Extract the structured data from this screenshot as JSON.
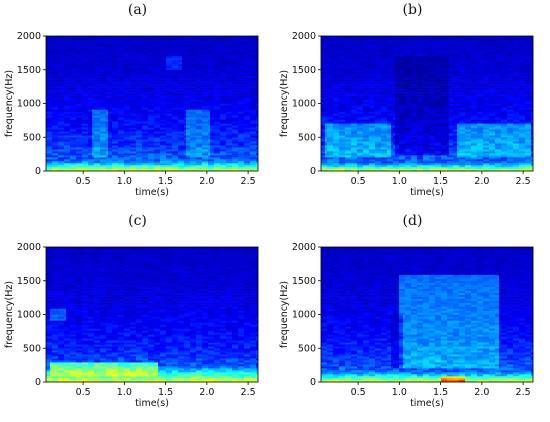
{
  "chart_data": [
    {
      "type": "heatmap",
      "panel_label": "(a)",
      "xlabel": "time(s)",
      "ylabel": "frequency(Hz)",
      "xlim": [
        0.05,
        2.62
      ],
      "ylim": [
        0,
        2000
      ],
      "xticks": [
        0.5,
        1.0,
        1.5,
        2.0,
        2.5
      ],
      "xtick_labels": [
        "0.5",
        "1.0",
        "1.5",
        "2.0",
        "2.5"
      ],
      "yticks": [
        0,
        500,
        1000,
        1500,
        2000
      ],
      "ytick_labels": [
        "0",
        "500",
        "1000",
        "1500",
        "2000"
      ],
      "colormap": "jet",
      "low_freq_energy_band_hz": 150,
      "notable_regions": [
        {
          "x": [
            0.6,
            0.8
          ],
          "y": [
            200,
            900
          ],
          "level": 0.32
        },
        {
          "x": [
            1.75,
            2.05
          ],
          "y": [
            200,
            900
          ],
          "level": 0.3
        },
        {
          "x": [
            1.5,
            1.7
          ],
          "y": [
            1500,
            1700
          ],
          "level": 0.25
        }
      ]
    },
    {
      "type": "heatmap",
      "panel_label": "(b)",
      "xlabel": "time(s)",
      "ylabel": "frequency(Hz)",
      "xlim": [
        0.05,
        2.62
      ],
      "ylim": [
        0,
        2000
      ],
      "xticks": [
        0.5,
        1.0,
        1.5,
        2.0,
        2.5
      ],
      "xtick_labels": [
        "0.5",
        "1.0",
        "1.5",
        "2.0",
        "2.5"
      ],
      "yticks": [
        0,
        500,
        1000,
        1500,
        2000
      ],
      "ytick_labels": [
        "0",
        "500",
        "1000",
        "1500",
        "2000"
      ],
      "colormap": "jet",
      "low_freq_energy_band_hz": 120,
      "notable_regions": [
        {
          "x": [
            0.95,
            1.6
          ],
          "y": [
            250,
            1700
          ],
          "level": 0.08
        },
        {
          "x": [
            0.1,
            0.9
          ],
          "y": [
            200,
            700
          ],
          "level": 0.35
        },
        {
          "x": [
            1.7,
            2.6
          ],
          "y": [
            200,
            700
          ],
          "level": 0.35
        }
      ]
    },
    {
      "type": "heatmap",
      "panel_label": "(c)",
      "xlabel": "time(s)",
      "ylabel": "frequency(Hz)",
      "xlim": [
        0.05,
        2.62
      ],
      "ylim": [
        0,
        2000
      ],
      "xticks": [
        0.5,
        1.0,
        1.5,
        2.0,
        2.5
      ],
      "xtick_labels": [
        "0.5",
        "1.0",
        "1.5",
        "2.0",
        "2.5"
      ],
      "yticks": [
        0,
        500,
        1000,
        1500,
        2000
      ],
      "ytick_labels": [
        "0",
        "500",
        "1000",
        "1500",
        "2000"
      ],
      "colormap": "jet",
      "low_freq_energy_band_hz": 250,
      "notable_regions": [
        {
          "x": [
            0.1,
            1.4
          ],
          "y": [
            100,
            300
          ],
          "level": 0.55
        },
        {
          "x": [
            0.1,
            0.3
          ],
          "y": [
            900,
            1100
          ],
          "level": 0.3
        }
      ]
    },
    {
      "type": "heatmap",
      "panel_label": "(d)",
      "xlabel": "time(s)",
      "ylabel": "frequency(Hz)",
      "xlim": [
        0.05,
        2.62
      ],
      "ylim": [
        0,
        2000
      ],
      "xticks": [
        0.5,
        1.0,
        1.5,
        2.0,
        2.5
      ],
      "xtick_labels": [
        "0.5",
        "1.0",
        "1.5",
        "2.0",
        "2.5"
      ],
      "yticks": [
        0,
        500,
        1000,
        1500,
        2000
      ],
      "ytick_labels": [
        "0",
        "500",
        "1000",
        "1500",
        "2000"
      ],
      "colormap": "jet",
      "low_freq_energy_band_hz": 150,
      "notable_regions": [
        {
          "x": [
            1.0,
            2.2
          ],
          "y": [
            200,
            1600
          ],
          "level": 0.35
        },
        {
          "x": [
            0.9,
            1.05
          ],
          "y": [
            200,
            1000
          ],
          "level": 0.1
        },
        {
          "x": [
            1.5,
            1.8
          ],
          "y": [
            0,
            80
          ],
          "level": 0.75
        }
      ]
    }
  ]
}
